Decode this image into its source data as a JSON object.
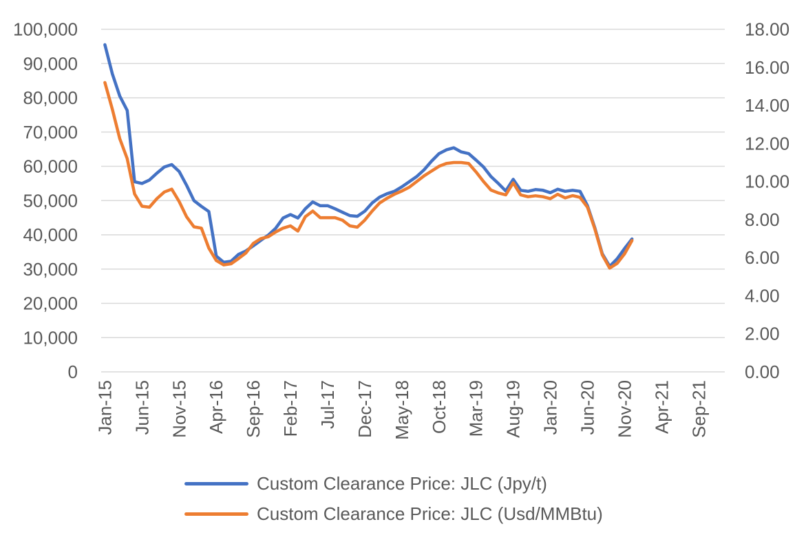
{
  "chart_data": {
    "type": "line",
    "title": "",
    "grid": true,
    "legend_position": "bottom",
    "x": [
      "Jan-15",
      "Feb-15",
      "Mar-15",
      "Apr-15",
      "May-15",
      "Jun-15",
      "Jul-15",
      "Aug-15",
      "Sep-15",
      "Oct-15",
      "Nov-15",
      "Dec-15",
      "Jan-16",
      "Feb-16",
      "Mar-16",
      "Apr-16",
      "May-16",
      "Jun-16",
      "Jul-16",
      "Aug-16",
      "Sep-16",
      "Oct-16",
      "Nov-16",
      "Dec-16",
      "Jan-17",
      "Feb-17",
      "Mar-17",
      "Apr-17",
      "May-17",
      "Jun-17",
      "Jul-17",
      "Aug-17",
      "Sep-17",
      "Oct-17",
      "Nov-17",
      "Dec-17",
      "Jan-18",
      "Feb-18",
      "Mar-18",
      "Apr-18",
      "May-18",
      "Jun-18",
      "Jul-18",
      "Aug-18",
      "Sep-18",
      "Oct-18",
      "Nov-18",
      "Dec-18",
      "Jan-19",
      "Feb-19",
      "Mar-19",
      "Apr-19",
      "May-19",
      "Jun-19",
      "Jul-19",
      "Aug-19",
      "Sep-19",
      "Oct-19",
      "Nov-19",
      "Dec-19",
      "Jan-20",
      "Feb-20",
      "Mar-20",
      "Apr-20",
      "May-20",
      "Jun-20",
      "Jul-20",
      "Aug-20",
      "Sep-20",
      "Oct-20",
      "Nov-20",
      "Dec-20"
    ],
    "series": [
      {
        "name": "Custom Clearance Price: JLC (Jpy/t)",
        "axis": "left",
        "color": "#4472C4",
        "values": [
          95500,
          87000,
          80500,
          76300,
          55500,
          55000,
          56000,
          58000,
          59800,
          60500,
          58500,
          54500,
          50000,
          48300,
          46800,
          33800,
          32000,
          32300,
          34300,
          35300,
          36800,
          38400,
          39900,
          41900,
          44900,
          45900,
          44900,
          47600,
          49600,
          48500,
          48500,
          47600,
          46600,
          45600,
          45400,
          46900,
          49300,
          51000,
          52000,
          52700,
          54000,
          55500,
          57000,
          59000,
          61500,
          63700,
          64800,
          65400,
          64200,
          63700,
          61800,
          59800,
          57000,
          55000,
          52800,
          56200,
          53000,
          52700,
          53200,
          53000,
          52300,
          53300,
          52700,
          53000,
          52700,
          48500,
          42000,
          34500,
          30800,
          33000,
          36000,
          38800
        ]
      },
      {
        "name": "Custom Clearance Price: JLC (Usd/MMBtu)",
        "axis": "right",
        "color": "#ED7D31",
        "values": [
          15.2,
          13.8,
          12.25,
          11.2,
          9.35,
          8.7,
          8.65,
          9.1,
          9.45,
          9.6,
          8.95,
          8.15,
          7.62,
          7.55,
          6.5,
          5.85,
          5.62,
          5.68,
          5.95,
          6.25,
          6.75,
          7.0,
          7.1,
          7.35,
          7.55,
          7.67,
          7.4,
          8.15,
          8.45,
          8.1,
          8.1,
          8.1,
          7.97,
          7.67,
          7.6,
          7.97,
          8.45,
          8.87,
          9.12,
          9.33,
          9.5,
          9.7,
          10.0,
          10.3,
          10.55,
          10.8,
          10.95,
          11.0,
          11.0,
          10.95,
          10.5,
          10.0,
          9.55,
          9.4,
          9.3,
          9.93,
          9.3,
          9.2,
          9.25,
          9.2,
          9.1,
          9.33,
          9.14,
          9.26,
          9.17,
          8.65,
          7.5,
          6.15,
          5.45,
          5.7,
          6.2,
          6.9
        ]
      }
    ],
    "left_axis": {
      "ylim": [
        0,
        100000
      ],
      "tick_step": 10000,
      "tick_labels": [
        "100,000",
        "90,000",
        "80,000",
        "70,000",
        "60,000",
        "50,000",
        "40,000",
        "30,000",
        "20,000",
        "10,000",
        "0"
      ]
    },
    "right_axis": {
      "ylim": [
        0,
        18
      ],
      "tick_step": 2,
      "tick_labels": [
        "18.00",
        "16.00",
        "14.00",
        "12.00",
        "10.00",
        "8.00",
        "6.00",
        "4.00",
        "2.00",
        "0.00"
      ]
    },
    "x_axis": {
      "total_month_slots": 84,
      "tick_month_indices": [
        0,
        5,
        10,
        15,
        20,
        25,
        30,
        35,
        40,
        45,
        50,
        55,
        60,
        65,
        70,
        75,
        80
      ],
      "tick_labels": [
        "Jan-15",
        "Jun-15",
        "Nov-15",
        "Apr-16",
        "Sep-16",
        "Feb-17",
        "Jul-17",
        "Dec-17",
        "May-18",
        "Oct-18",
        "Mar-19",
        "Aug-19",
        "Jan-20",
        "Jun-20",
        "Nov-20",
        "Apr-21",
        "Sep-21"
      ]
    }
  },
  "legend": {
    "items": [
      {
        "label": "Custom Clearance Price: JLC (Jpy/t)",
        "color": "#4472C4"
      },
      {
        "label": "Custom Clearance Price: JLC (Usd/MMBtu)",
        "color": "#ED7D31"
      }
    ]
  },
  "colors": {
    "series_blue": "#4472C4",
    "series_orange": "#ED7D31",
    "gridline": "#D9D9D9",
    "axis_text": "#595959",
    "background": "#FFFFFF"
  }
}
